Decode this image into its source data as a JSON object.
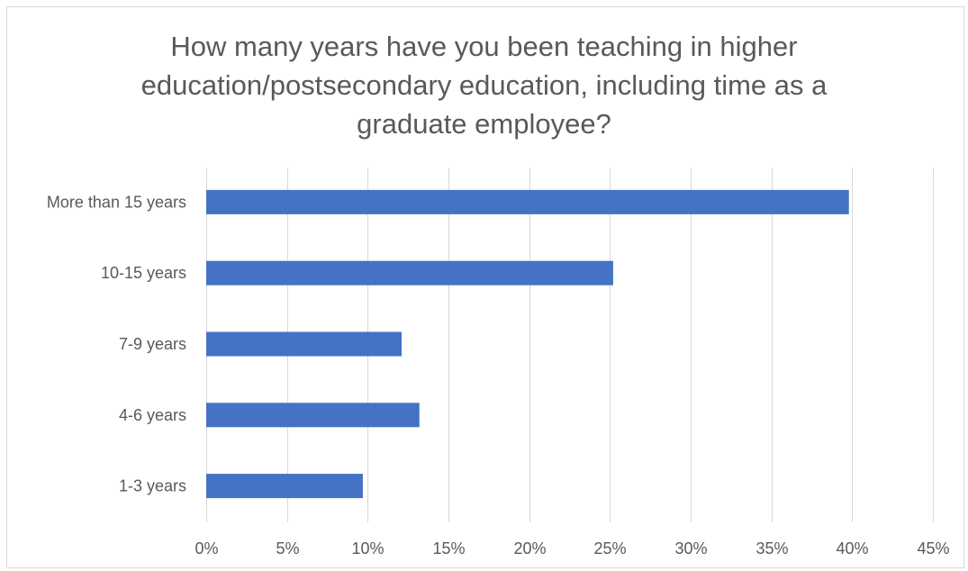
{
  "chart_data": {
    "type": "bar",
    "orientation": "horizontal",
    "title_lines": [
      "How many years have you been teaching in higher",
      "education/postsecondary education, including time as a",
      "graduate employee?"
    ],
    "categories": [
      "More than 15 years",
      "10-15 years",
      "7-9 years",
      "4-6 years",
      "1-3 years"
    ],
    "values": [
      39.8,
      25.2,
      12.1,
      13.2,
      9.7
    ],
    "unit": "%",
    "xlim": [
      0,
      45
    ],
    "xticks": [
      "0%",
      "5%",
      "10%",
      "15%",
      "20%",
      "25%",
      "30%",
      "35%",
      "40%",
      "45%"
    ],
    "grid": "vertical",
    "legend": "none",
    "bar_color": "#4472c4",
    "xlabel": "",
    "ylabel": ""
  }
}
